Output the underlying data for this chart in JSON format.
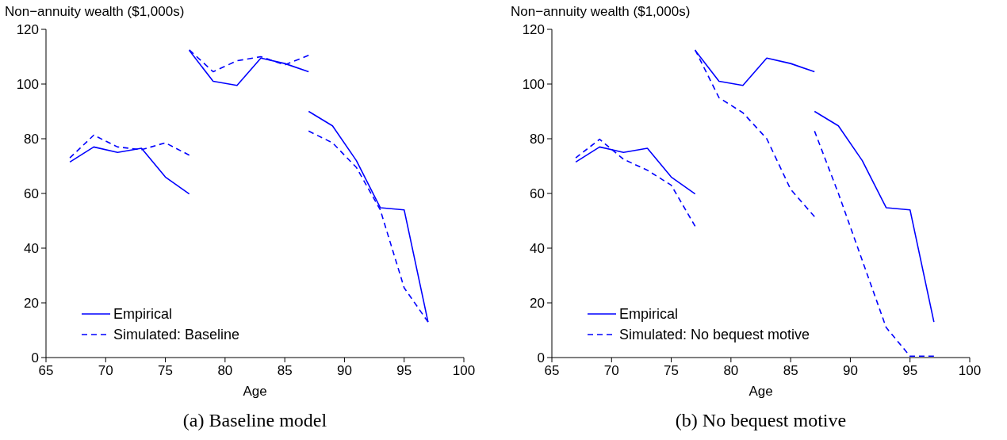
{
  "chart_data": [
    {
      "type": "line",
      "ylabel": "Non−annuity wealth ($1,000s)",
      "xlabel": "Age",
      "annotations": [
        "(a) Baseline model"
      ],
      "xlim": [
        65,
        100
      ],
      "xticks": [
        65,
        70,
        75,
        80,
        85,
        90,
        95,
        100
      ],
      "ylim": [
        0,
        120
      ],
      "yticks": [
        0,
        20,
        40,
        60,
        80,
        100,
        120
      ],
      "legend": "bottom left",
      "series": [
        {
          "name": "Empirical",
          "color": "#0000ff",
          "line_style": "solid",
          "x": [
            67,
            69,
            71,
            73,
            75,
            77
          ],
          "values": [
            71.5,
            77,
            75,
            76.5,
            66,
            59.8
          ]
        },
        {
          "color": "#0000ff",
          "line_style": "solid",
          "x": [
            77,
            79,
            81,
            83,
            85,
            87
          ],
          "values": [
            112.3,
            101,
            99.5,
            109.5,
            107.5,
            104.5
          ]
        },
        {
          "color": "#0000ff",
          "line_style": "solid",
          "x": [
            87,
            89,
            91,
            93,
            95,
            97
          ],
          "values": [
            90,
            84.7,
            72,
            54.8,
            54,
            13
          ]
        },
        {
          "name": "Simulated: Baseline",
          "color": "#0000ff",
          "line_style": "dashed",
          "x": [
            67,
            69,
            71,
            73,
            75,
            77
          ],
          "values": [
            73,
            81.3,
            77,
            76,
            78.5,
            74
          ]
        },
        {
          "color": "#0000ff",
          "line_style": "dashed",
          "x": [
            77,
            79,
            81,
            83,
            85,
            87
          ],
          "values": [
            112.5,
            104.5,
            108.5,
            110,
            107,
            110.5
          ]
        },
        {
          "color": "#0000ff",
          "line_style": "dashed",
          "x": [
            87,
            89,
            91,
            93,
            95,
            97
          ],
          "values": [
            82.8,
            78.5,
            69.5,
            54,
            25.5,
            13
          ]
        }
      ]
    },
    {
      "type": "line",
      "ylabel": "Non−annuity wealth ($1,000s)",
      "xlabel": "Age",
      "annotations": [
        "(b) No bequest motive"
      ],
      "xlim": [
        65,
        100
      ],
      "xticks": [
        65,
        70,
        75,
        80,
        85,
        90,
        95,
        100
      ],
      "ylim": [
        0,
        120
      ],
      "yticks": [
        0,
        20,
        40,
        60,
        80,
        100,
        120
      ],
      "legend": "bottom left",
      "series": [
        {
          "name": "Empirical",
          "color": "#0000ff",
          "line_style": "solid",
          "x": [
            67,
            69,
            71,
            73,
            75,
            77
          ],
          "values": [
            71.5,
            77,
            75,
            76.5,
            66,
            59.8
          ]
        },
        {
          "color": "#0000ff",
          "line_style": "solid",
          "x": [
            77,
            79,
            81,
            83,
            85,
            87
          ],
          "values": [
            112.3,
            101,
            99.5,
            109.5,
            107.5,
            104.5
          ]
        },
        {
          "color": "#0000ff",
          "line_style": "solid",
          "x": [
            87,
            89,
            91,
            93,
            95,
            97
          ],
          "values": [
            90,
            84.7,
            72,
            54.8,
            54,
            13
          ]
        },
        {
          "name": "Simulated: No bequest motive",
          "color": "#0000ff",
          "line_style": "dashed",
          "x": [
            67,
            69,
            71,
            73,
            75,
            77
          ],
          "values": [
            73,
            79.8,
            72.5,
            68.5,
            63,
            48
          ]
        },
        {
          "color": "#0000ff",
          "line_style": "dashed",
          "x": [
            77,
            79,
            81,
            83,
            85,
            87
          ],
          "values": [
            112.5,
            95,
            89.5,
            80,
            61.5,
            51.5
          ]
        },
        {
          "color": "#0000ff",
          "line_style": "dashed",
          "x": [
            87,
            89,
            91,
            93,
            95,
            97
          ],
          "values": [
            82.8,
            60,
            35.5,
            11,
            0.5,
            0.5
          ]
        }
      ]
    }
  ]
}
